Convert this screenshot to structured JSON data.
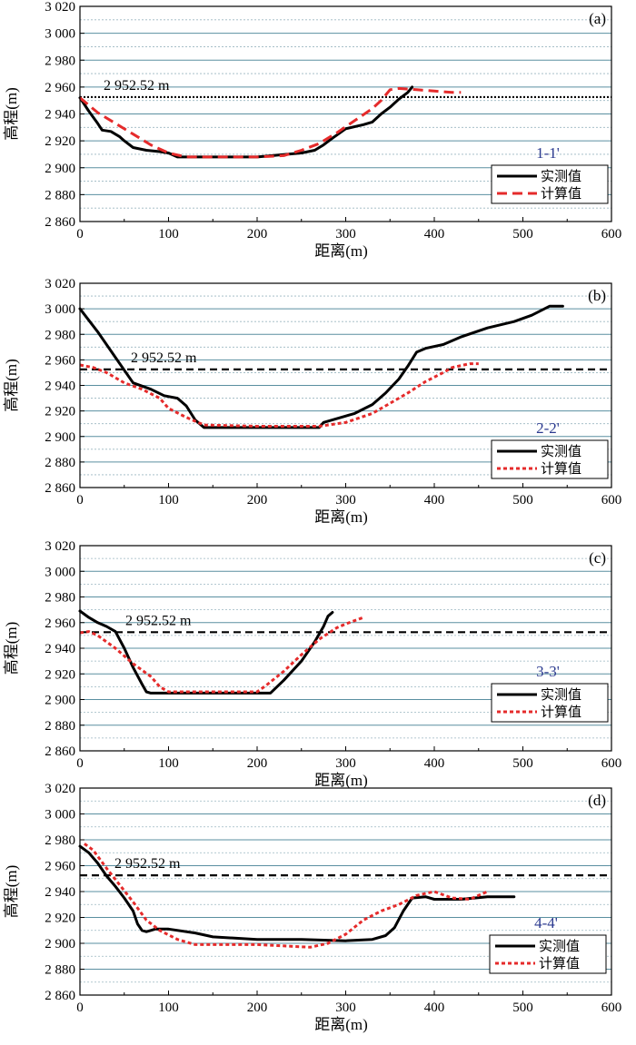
{
  "chart_data": [
    {
      "type": "line",
      "panel_label": "(a)",
      "section_label": "1-1'",
      "xlabel": "距离(m)",
      "ylabel": "高程(m)",
      "xlim": [
        0,
        600
      ],
      "ylim": [
        2860,
        3020
      ],
      "x_ticks": [
        "0",
        "100",
        "200",
        "300",
        "400",
        "500",
        "600"
      ],
      "y_ticks": [
        "2 860",
        "2 880",
        "2 900",
        "2 920",
        "2 940",
        "2 960",
        "2 980",
        "3 000",
        "3 020"
      ],
      "grid": "horizontal",
      "reference_line": {
        "value": 2952.52,
        "label": "2 952.52 m",
        "style": "dotted"
      },
      "legend": {
        "position": "bottom-right"
      },
      "series": [
        {
          "name": "实测值",
          "color": "#000000",
          "style": "solid",
          "x": [
            0,
            10,
            20,
            25,
            35,
            45,
            50,
            60,
            75,
            90,
            100,
            110,
            150,
            200,
            250,
            265,
            275,
            285,
            300,
            320,
            330,
            340,
            350,
            360,
            370,
            375
          ],
          "y": [
            2952,
            2942,
            2933,
            2928,
            2927,
            2923,
            2920,
            2915,
            2913,
            2912,
            2911,
            2908,
            2908,
            2908,
            2911,
            2913,
            2917,
            2922,
            2929,
            2932,
            2934,
            2940,
            2945,
            2951,
            2956,
            2960
          ]
        },
        {
          "name": "计算值",
          "color": "#e52b2b",
          "style": "dashed",
          "x": [
            0,
            20,
            40,
            60,
            80,
            100,
            120,
            150,
            200,
            230,
            250,
            270,
            290,
            310,
            330,
            340,
            350,
            360,
            380,
            400,
            420,
            430
          ],
          "y": [
            2952,
            2941,
            2933,
            2925,
            2917,
            2911,
            2908,
            2908,
            2908,
            2909,
            2913,
            2918,
            2926,
            2935,
            2944,
            2950,
            2958,
            2959,
            2958,
            2957,
            2956,
            2956
          ]
        }
      ]
    },
    {
      "type": "line",
      "panel_label": "(b)",
      "section_label": "2-2'",
      "xlabel": "距离(m)",
      "ylabel": "高程(m)",
      "xlim": [
        0,
        600
      ],
      "ylim": [
        2860,
        3020
      ],
      "x_ticks": [
        "0",
        "100",
        "200",
        "300",
        "400",
        "500",
        "600"
      ],
      "y_ticks": [
        "2 860",
        "2 880",
        "2 900",
        "2 920",
        "2 940",
        "2 960",
        "2 980",
        "3 000",
        "3 020"
      ],
      "grid": "horizontal",
      "reference_line": {
        "value": 2952.52,
        "label": "2 952.52 m",
        "style": "dashed"
      },
      "legend": {
        "position": "bottom-right"
      },
      "series": [
        {
          "name": "实测值",
          "color": "#000000",
          "style": "solid",
          "x": [
            0,
            20,
            40,
            60,
            80,
            95,
            110,
            120,
            130,
            140,
            150,
            200,
            270,
            275,
            290,
            310,
            330,
            345,
            360,
            370,
            380,
            390,
            410,
            430,
            460,
            490,
            510,
            530,
            545
          ],
          "y": [
            3000,
            2982,
            2962,
            2942,
            2937,
            2932,
            2930,
            2924,
            2913,
            2907,
            2907,
            2907,
            2907,
            2911,
            2914,
            2918,
            2925,
            2934,
            2945,
            2955,
            2966,
            2969,
            2972,
            2978,
            2985,
            2990,
            2995,
            3002,
            3002
          ]
        },
        {
          "name": "计算值",
          "color": "#e52b2b",
          "style": "dotted",
          "x": [
            0,
            15,
            30,
            50,
            70,
            90,
            100,
            120,
            140,
            200,
            270,
            300,
            330,
            350,
            370,
            390,
            410,
            420,
            440,
            450
          ],
          "y": [
            2956,
            2954,
            2950,
            2942,
            2937,
            2930,
            2922,
            2915,
            2909,
            2908,
            2908,
            2911,
            2918,
            2926,
            2934,
            2943,
            2950,
            2954,
            2957,
            2957
          ]
        }
      ]
    },
    {
      "type": "line",
      "panel_label": "(c)",
      "section_label": "3-3'",
      "xlabel": "距离(m)",
      "ylabel": "高程(m)",
      "xlim": [
        0,
        600
      ],
      "ylim": [
        2860,
        3020
      ],
      "x_ticks": [
        "0",
        "100",
        "200",
        "300",
        "400",
        "500",
        "600"
      ],
      "y_ticks": [
        "2 860",
        "2 880",
        "2 900",
        "2 920",
        "2 940",
        "2 960",
        "2 980",
        "3 000",
        "3 020"
      ],
      "grid": "horizontal",
      "reference_line": {
        "value": 2952.52,
        "label": "2 952.52 m",
        "style": "dashed"
      },
      "legend": {
        "position": "bottom-right"
      },
      "series": [
        {
          "name": "实测值",
          "color": "#000000",
          "style": "solid",
          "x": [
            0,
            10,
            20,
            30,
            40,
            50,
            60,
            70,
            75,
            80,
            90,
            120,
            160,
            200,
            215,
            230,
            250,
            265,
            275,
            280,
            285
          ],
          "y": [
            2969,
            2964,
            2960,
            2957,
            2953,
            2940,
            2925,
            2912,
            2906,
            2905,
            2905,
            2905,
            2905,
            2905,
            2905,
            2915,
            2930,
            2945,
            2957,
            2965,
            2968
          ]
        },
        {
          "name": "计算值",
          "color": "#e52b2b",
          "style": "dotted",
          "x": [
            0,
            10,
            20,
            40,
            60,
            80,
            90,
            100,
            140,
            200,
            210,
            230,
            250,
            270,
            290,
            300,
            320
          ],
          "y": [
            2952,
            2953,
            2950,
            2940,
            2928,
            2918,
            2910,
            2906,
            2906,
            2906,
            2911,
            2922,
            2935,
            2947,
            2956,
            2959,
            2964
          ]
        }
      ]
    },
    {
      "type": "line",
      "panel_label": "(d)",
      "section_label": "4-4'",
      "xlabel": "距离(m)",
      "ylabel": "高程(m)",
      "xlim": [
        0,
        600
      ],
      "ylim": [
        2860,
        3020
      ],
      "x_ticks": [
        "0",
        "100",
        "200",
        "300",
        "400",
        "500",
        "600"
      ],
      "y_ticks": [
        "2 860",
        "2 880",
        "2 900",
        "2 920",
        "2 940",
        "2 960",
        "2 980",
        "3 000",
        "3 020"
      ],
      "grid": "horizontal",
      "reference_line": {
        "value": 2952.52,
        "label": "2 952.52 m",
        "style": "dashed"
      },
      "legend": {
        "position": "bottom-right"
      },
      "series": [
        {
          "name": "实测值",
          "color": "#000000",
          "style": "solid",
          "x": [
            0,
            10,
            20,
            30,
            40,
            50,
            60,
            65,
            70,
            75,
            80,
            85,
            100,
            130,
            150,
            200,
            250,
            300,
            330,
            345,
            355,
            365,
            375,
            390,
            400,
            430,
            460,
            490
          ],
          "y": [
            2975,
            2970,
            2962,
            2952,
            2944,
            2935,
            2925,
            2915,
            2910,
            2909,
            2910,
            2911,
            2911,
            2908,
            2905,
            2903,
            2903,
            2902,
            2903,
            2906,
            2912,
            2925,
            2935,
            2936,
            2934,
            2934,
            2936,
            2936
          ]
        },
        {
          "name": "计算值",
          "color": "#e52b2b",
          "style": "dotted",
          "x": [
            5,
            15,
            30,
            45,
            60,
            75,
            90,
            110,
            130,
            200,
            260,
            280,
            300,
            320,
            340,
            360,
            380,
            400,
            420,
            440,
            460
          ],
          "y": [
            2977,
            2972,
            2958,
            2945,
            2932,
            2918,
            2910,
            2903,
            2899,
            2899,
            2897,
            2900,
            2907,
            2918,
            2925,
            2930,
            2937,
            2940,
            2935,
            2934,
            2940
          ]
        }
      ]
    }
  ]
}
